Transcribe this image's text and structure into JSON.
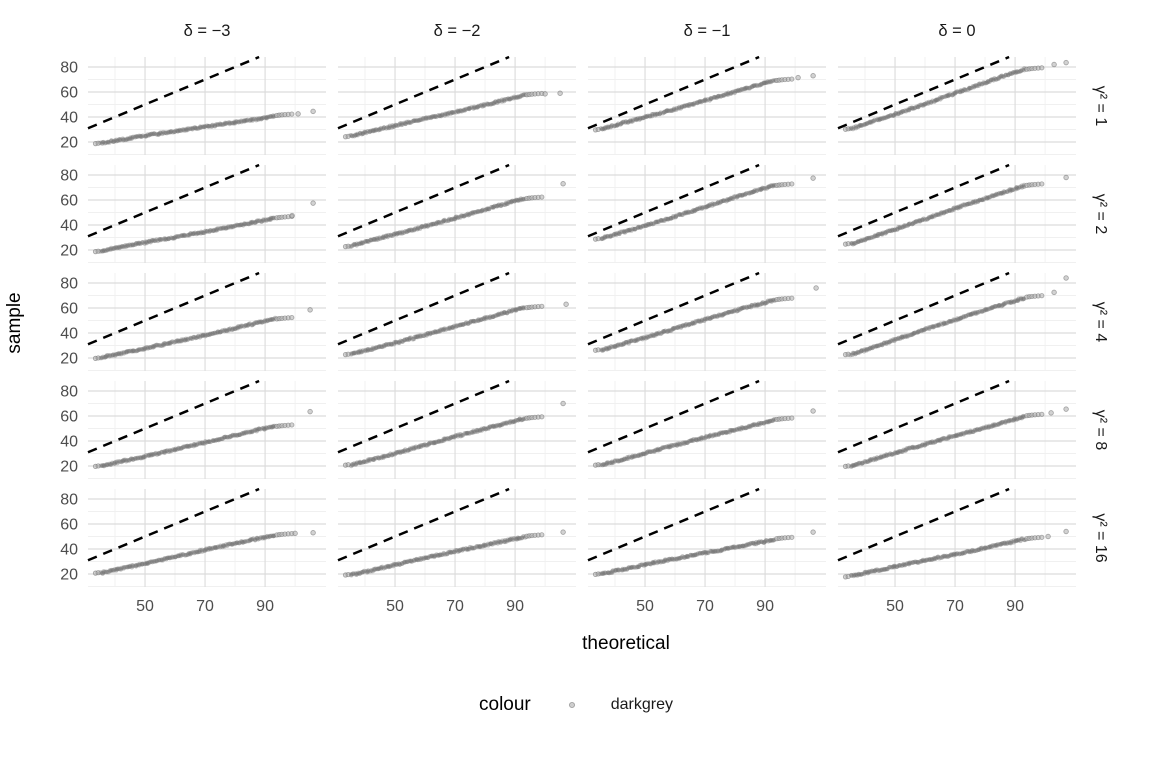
{
  "chart_data": {
    "type": "scatter",
    "title": "",
    "xlabel": "theoretical",
    "ylabel": "sample",
    "x_ticks": [
      50,
      70,
      90
    ],
    "y_ticks": [
      20,
      40,
      60,
      80
    ],
    "x_minor": [
      40,
      60,
      80,
      100
    ],
    "y_minor": [
      10,
      30,
      50,
      70
    ],
    "x_range": [
      31,
      110.3
    ],
    "y_range": [
      9.6,
      88
    ],
    "grid": "on",
    "col_facets": [
      "δ = −3",
      "δ = −2",
      "δ = −1",
      "δ = 0"
    ],
    "row_facets": [
      "γ² = 1",
      "γ² = 2",
      "γ² = 4",
      "γ² = 8",
      "γ² = 16"
    ],
    "reference_line": {
      "equation": "y = x",
      "style": "dashed",
      "color": "#000000"
    },
    "band_x_start": 35.3,
    "band_x_end": 93.2,
    "panels": [
      {
        "row": 0,
        "col": 0,
        "band": [
          19.0,
          41.0
        ],
        "outliers": [
          [
            101,
            42.5
          ],
          [
            106,
            44.5
          ]
        ]
      },
      {
        "row": 0,
        "col": 1,
        "band": [
          24.5,
          57.5
        ],
        "outliers": [
          [
            100,
            58.5
          ],
          [
            105,
            59.0
          ]
        ]
      },
      {
        "row": 0,
        "col": 2,
        "band": [
          30.0,
          69.0
        ],
        "outliers": [
          [
            101,
            71.5
          ],
          [
            106,
            73.0
          ]
        ]
      },
      {
        "row": 0,
        "col": 3,
        "band": [
          30.5,
          78.0
        ],
        "outliers": [
          [
            103,
            82.0
          ],
          [
            107,
            83.5
          ]
        ]
      },
      {
        "row": 1,
        "col": 0,
        "band": [
          19.0,
          45.5
        ],
        "outliers": [
          [
            99,
            47.5
          ],
          [
            106,
            57.5
          ]
        ]
      },
      {
        "row": 1,
        "col": 1,
        "band": [
          23.0,
          61.0
        ],
        "outliers": [
          [
            106,
            73.0
          ]
        ]
      },
      {
        "row": 1,
        "col": 2,
        "band": [
          29.0,
          71.5
        ],
        "outliers": [
          [
            106,
            77.5
          ]
        ]
      },
      {
        "row": 1,
        "col": 3,
        "band": [
          25.0,
          71.5
        ],
        "outliers": [
          [
            107,
            78.0
          ]
        ]
      },
      {
        "row": 2,
        "col": 0,
        "band": [
          20.0,
          51.0
        ],
        "outliers": [
          [
            105,
            58.5
          ]
        ]
      },
      {
        "row": 2,
        "col": 1,
        "band": [
          23.0,
          60.0
        ],
        "outliers": [
          [
            107,
            63.0
          ]
        ]
      },
      {
        "row": 2,
        "col": 2,
        "band": [
          26.5,
          66.5
        ],
        "outliers": [
          [
            107,
            76.0
          ]
        ]
      },
      {
        "row": 2,
        "col": 3,
        "band": [
          23.0,
          68.5
        ],
        "outliers": [
          [
            103,
            72.5
          ],
          [
            107,
            84.0
          ]
        ]
      },
      {
        "row": 3,
        "col": 0,
        "band": [
          20.0,
          51.5
        ],
        "outliers": [
          [
            105,
            63.5
          ]
        ]
      },
      {
        "row": 3,
        "col": 1,
        "band": [
          21.0,
          58.0
        ],
        "outliers": [
          [
            106,
            70.0
          ]
        ]
      },
      {
        "row": 3,
        "col": 2,
        "band": [
          21.0,
          57.0
        ],
        "outliers": [
          [
            106,
            64.0
          ]
        ]
      },
      {
        "row": 3,
        "col": 3,
        "band": [
          20.0,
          60.0
        ],
        "outliers": [
          [
            102,
            62.5
          ],
          [
            107,
            65.5
          ]
        ]
      },
      {
        "row": 4,
        "col": 0,
        "band": [
          21.0,
          51.0
        ],
        "outliers": [
          [
            100,
            52.5
          ],
          [
            106,
            53.0
          ]
        ]
      },
      {
        "row": 4,
        "col": 1,
        "band": [
          19.5,
          50.0
        ],
        "outliers": [
          [
            106,
            53.5
          ]
        ]
      },
      {
        "row": 4,
        "col": 2,
        "band": [
          20.0,
          48.0
        ],
        "outliers": [
          [
            106,
            53.5
          ]
        ]
      },
      {
        "row": 4,
        "col": 3,
        "band": [
          18.0,
          48.0
        ],
        "outliers": [
          [
            101,
            50.0
          ],
          [
            107,
            54.0
          ]
        ]
      }
    ],
    "colors": {
      "point": "rgba(115,115,115,0.42)",
      "point_edge": "rgba(105,105,105,0.55)",
      "outlier_fill": "rgba(165,165,165,0.5)",
      "grid_major": "#DCDCDC",
      "grid_minor": "#F0F0F0",
      "tick_label": "#4D4D4D",
      "facet_label": "#1A1A1A",
      "reference": "#000000"
    }
  },
  "legend": {
    "title": "colour",
    "items": [
      {
        "label": "darkgrey",
        "color": "#A9A9A9"
      }
    ]
  }
}
